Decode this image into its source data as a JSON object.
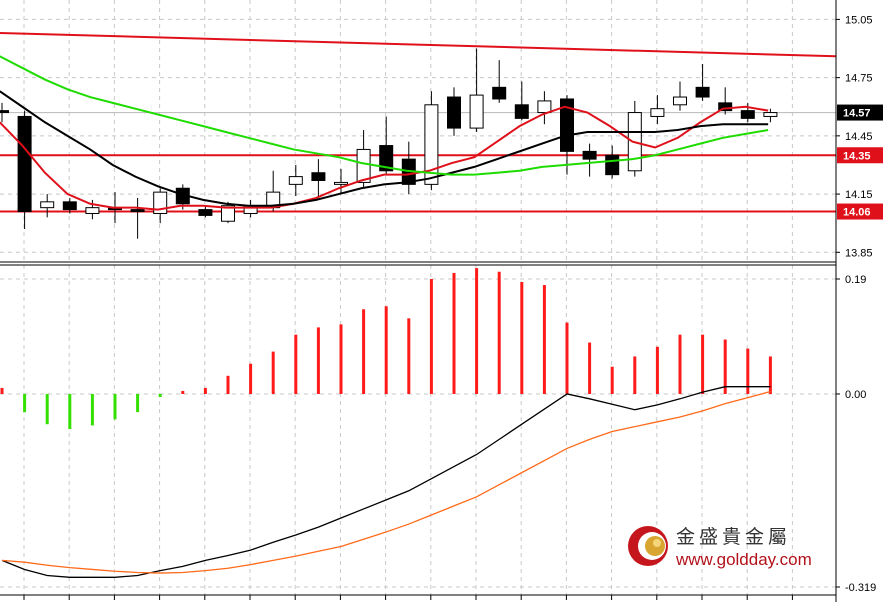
{
  "chart_data": [
    {
      "type": "candlestick",
      "panel": "price",
      "ylim": [
        13.8,
        15.15
      ],
      "y_ticks": [
        "15.05",
        "14.75",
        "14.45",
        "14.15",
        "13.85"
      ],
      "y_tick_values": [
        15.05,
        14.75,
        14.45,
        14.15,
        13.85
      ],
      "grid": true,
      "candles": [
        {
          "o": 14.58,
          "h": 14.62,
          "l": 14.52,
          "c": 14.57
        },
        {
          "o": 14.55,
          "h": 14.58,
          "l": 13.97,
          "c": 14.06
        },
        {
          "o": 14.08,
          "h": 14.15,
          "l": 14.03,
          "c": 14.11
        },
        {
          "o": 14.11,
          "h": 14.13,
          "l": 14.05,
          "c": 14.07
        },
        {
          "o": 14.05,
          "h": 14.12,
          "l": 14.02,
          "c": 14.08
        },
        {
          "o": 14.08,
          "h": 14.16,
          "l": 14.0,
          "c": 14.07
        },
        {
          "o": 14.07,
          "h": 14.13,
          "l": 13.92,
          "c": 14.06
        },
        {
          "o": 14.05,
          "h": 14.18,
          "l": 14.0,
          "c": 14.16
        },
        {
          "o": 14.18,
          "h": 14.2,
          "l": 14.07,
          "c": 14.1
        },
        {
          "o": 14.07,
          "h": 14.09,
          "l": 14.03,
          "c": 14.04
        },
        {
          "o": 14.01,
          "h": 14.11,
          "l": 14.0,
          "c": 14.09
        },
        {
          "o": 14.05,
          "h": 14.12,
          "l": 14.03,
          "c": 14.09
        },
        {
          "o": 14.08,
          "h": 14.27,
          "l": 14.06,
          "c": 14.16
        },
        {
          "o": 14.2,
          "h": 14.3,
          "l": 14.14,
          "c": 14.24
        },
        {
          "o": 14.26,
          "h": 14.33,
          "l": 14.13,
          "c": 14.22
        },
        {
          "o": 14.2,
          "h": 14.28,
          "l": 14.15,
          "c": 14.21
        },
        {
          "o": 14.21,
          "h": 14.48,
          "l": 14.18,
          "c": 14.38
        },
        {
          "o": 14.4,
          "h": 14.55,
          "l": 14.25,
          "c": 14.27
        },
        {
          "o": 14.33,
          "h": 14.42,
          "l": 14.15,
          "c": 14.2
        },
        {
          "o": 14.2,
          "h": 14.68,
          "l": 14.17,
          "c": 14.61
        },
        {
          "o": 14.65,
          "h": 14.7,
          "l": 14.45,
          "c": 14.49
        },
        {
          "o": 14.49,
          "h": 14.9,
          "l": 14.47,
          "c": 14.66
        },
        {
          "o": 14.7,
          "h": 14.84,
          "l": 14.62,
          "c": 14.64
        },
        {
          "o": 14.61,
          "h": 14.73,
          "l": 14.53,
          "c": 14.54
        },
        {
          "o": 14.57,
          "h": 14.68,
          "l": 14.51,
          "c": 14.63
        },
        {
          "o": 14.64,
          "h": 14.66,
          "l": 14.25,
          "c": 14.37
        },
        {
          "o": 14.37,
          "h": 14.41,
          "l": 14.24,
          "c": 14.33
        },
        {
          "o": 14.35,
          "h": 14.4,
          "l": 14.23,
          "c": 14.25
        },
        {
          "o": 14.27,
          "h": 14.63,
          "l": 14.24,
          "c": 14.57
        },
        {
          "o": 14.55,
          "h": 14.66,
          "l": 14.51,
          "c": 14.59
        },
        {
          "o": 14.61,
          "h": 14.73,
          "l": 14.58,
          "c": 14.65
        },
        {
          "o": 14.7,
          "h": 14.82,
          "l": 14.63,
          "c": 14.65
        },
        {
          "o": 14.62,
          "h": 14.7,
          "l": 14.56,
          "c": 14.58
        },
        {
          "o": 14.58,
          "h": 14.62,
          "l": 14.52,
          "c": 14.54
        },
        {
          "o": 14.55,
          "h": 14.59,
          "l": 14.52,
          "c": 14.57
        }
      ],
      "overlays": [
        {
          "name": "",
          "color": "#e0101a",
          "style": "line",
          "values": [
            14.52,
            14.4,
            14.26,
            14.15,
            14.1,
            14.08,
            14.08,
            14.07,
            14.09,
            14.09,
            14.08,
            14.08,
            14.08,
            14.1,
            14.13,
            14.18,
            14.22,
            14.25,
            14.25,
            14.27,
            14.31,
            14.34,
            14.42,
            14.5,
            14.56,
            14.6,
            14.57,
            14.5,
            14.42,
            14.39,
            14.44,
            14.52,
            14.59,
            14.6,
            14.58
          ]
        },
        {
          "name": "",
          "color": "#000000",
          "style": "line",
          "values": [
            14.68,
            14.6,
            14.52,
            14.45,
            14.38,
            14.3,
            14.24,
            14.19,
            14.15,
            14.12,
            14.1,
            14.09,
            14.09,
            14.1,
            14.12,
            14.15,
            14.18,
            14.2,
            14.21,
            14.23,
            14.26,
            14.29,
            14.33,
            14.37,
            14.41,
            14.45,
            14.47,
            14.47,
            14.47,
            14.47,
            14.48,
            14.5,
            14.51,
            14.51,
            14.51
          ]
        },
        {
          "name": "",
          "color": "#1fdc00",
          "style": "line",
          "values": [
            14.86,
            14.8,
            14.74,
            14.69,
            14.65,
            14.62,
            14.59,
            14.56,
            14.53,
            14.5,
            14.47,
            14.44,
            14.41,
            14.38,
            14.36,
            14.34,
            14.31,
            14.29,
            14.27,
            14.26,
            14.25,
            14.25,
            14.26,
            14.27,
            14.29,
            14.3,
            14.31,
            14.32,
            14.33,
            14.35,
            14.38,
            14.41,
            14.44,
            14.46,
            14.48
          ]
        }
      ],
      "resistance_line": {
        "start": 14.98,
        "end": 14.86,
        "color": "#e0101a"
      },
      "horizontal_levels": [
        {
          "value": 14.35,
          "label": "14.35",
          "color": "#e0101a"
        },
        {
          "value": 14.06,
          "label": "14.06",
          "color": "#e0101a"
        }
      ],
      "current_price": {
        "value": 14.57,
        "label": "14.57",
        "color": "#000000"
      }
    },
    {
      "type": "macd",
      "panel": "indicator",
      "ylim": [
        -0.319,
        0.19
      ],
      "y_ticks": [
        "0.19",
        "0.00",
        "-0.319"
      ],
      "y_tick_values": [
        0.19,
        0.0,
        -0.319
      ],
      "grid": true,
      "histogram": [
        0.01,
        -0.03,
        -0.05,
        -0.058,
        -0.052,
        -0.042,
        -0.03,
        -0.005,
        0.005,
        0.01,
        0.03,
        0.05,
        0.07,
        0.098,
        0.11,
        0.115,
        0.14,
        0.145,
        0.125,
        0.19,
        0.2,
        0.208,
        0.202,
        0.185,
        0.18,
        0.118,
        0.085,
        0.045,
        0.062,
        0.078,
        0.098,
        0.098,
        0.09,
        0.075,
        0.062
      ],
      "histogram_pos_color": "#ff1a1a",
      "histogram_neg_color": "#33e000",
      "signal_lines": [
        {
          "name": "",
          "color": "#000000",
          "values": [
            -0.275,
            -0.29,
            -0.3,
            -0.303,
            -0.303,
            -0.303,
            -0.3,
            -0.292,
            -0.285,
            -0.275,
            -0.267,
            -0.258,
            -0.245,
            -0.233,
            -0.22,
            -0.205,
            -0.19,
            -0.175,
            -0.16,
            -0.14,
            -0.12,
            -0.1,
            -0.075,
            -0.05,
            -0.025,
            0.0,
            -0.008,
            -0.017,
            -0.026,
            -0.018,
            -0.008,
            0.003,
            0.012,
            0.012,
            0.012
          ]
        },
        {
          "name": "",
          "color": "#ff6a1a",
          "values": [
            -0.275,
            -0.278,
            -0.283,
            -0.287,
            -0.29,
            -0.293,
            -0.295,
            -0.296,
            -0.295,
            -0.292,
            -0.288,
            -0.282,
            -0.275,
            -0.268,
            -0.26,
            -0.252,
            -0.24,
            -0.228,
            -0.215,
            -0.2,
            -0.185,
            -0.17,
            -0.15,
            -0.13,
            -0.11,
            -0.09,
            -0.075,
            -0.062,
            -0.054,
            -0.046,
            -0.038,
            -0.028,
            -0.016,
            -0.006,
            0.004
          ]
        }
      ]
    }
  ],
  "logo": {
    "name_cn": "金盛貴金屬",
    "url": "www.goldday.com",
    "colors": {
      "ring": "#c4161c",
      "coin": "#d8a530"
    }
  }
}
